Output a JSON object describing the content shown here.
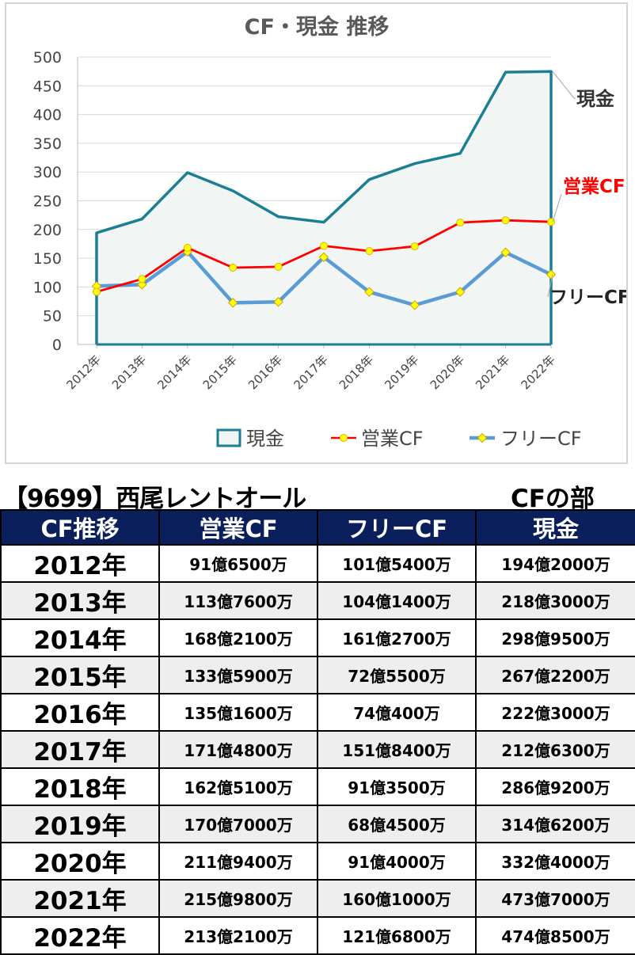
{
  "chart_data": {
    "type": "line",
    "title": "CF・現金 推移",
    "categories": [
      "2012年",
      "2013年",
      "2014年",
      "2015年",
      "2016年",
      "2017年",
      "2018年",
      "2019年",
      "2020年",
      "2021年",
      "2022年"
    ],
    "ylim": [
      0,
      500
    ],
    "yticks": [
      0,
      50,
      100,
      150,
      200,
      250,
      300,
      350,
      400,
      450,
      500
    ],
    "grid": true,
    "legend_position": "bottom",
    "series": [
      {
        "name": "現金",
        "style": "area",
        "color": "#1b7f94",
        "fill": "#f1f6f4",
        "values": [
          194.2,
          218.3,
          298.95,
          267.22,
          222.3,
          212.63,
          286.92,
          314.62,
          332.4,
          473.7,
          474.85
        ]
      },
      {
        "name": "営業CF",
        "style": "line",
        "color": "#ff0000",
        "marker": "circle",
        "marker_color": "#ffff00",
        "values": [
          91.65,
          113.76,
          168.21,
          133.59,
          135.16,
          171.48,
          162.51,
          170.7,
          211.94,
          215.98,
          213.21
        ]
      },
      {
        "name": "フリーCF",
        "style": "line",
        "color": "#5b9bd5",
        "marker": "diamond",
        "marker_color": "#ffff00",
        "values": [
          101.54,
          104.14,
          161.27,
          72.55,
          74.04,
          151.84,
          91.35,
          68.45,
          91.4,
          160.1,
          121.68
        ]
      }
    ],
    "annotations": [
      {
        "text": "現金",
        "series": 0,
        "color": "#333333"
      },
      {
        "text": "営業CF",
        "series": 1,
        "color": "#ff0000"
      },
      {
        "text": "フリーCF",
        "series": 2,
        "color": "#222222"
      }
    ]
  },
  "company_title": "【9699】西尾レントオール",
  "section_title": "CFの部",
  "table": {
    "headers": [
      "CF推移",
      "営業CF",
      "フリーCF",
      "現金"
    ],
    "rows": [
      [
        "2012年",
        "91億6500万",
        "101億5400万",
        "194億2000万"
      ],
      [
        "2013年",
        "113億7600万",
        "104億1400万",
        "218億3000万"
      ],
      [
        "2014年",
        "168億2100万",
        "161億2700万",
        "298億9500万"
      ],
      [
        "2015年",
        "133億5900万",
        "72億5500万",
        "267億2200万"
      ],
      [
        "2016年",
        "135億1600万",
        "74億400万",
        "222億3000万"
      ],
      [
        "2017年",
        "171億4800万",
        "151億8400万",
        "212億6300万"
      ],
      [
        "2018年",
        "162億5100万",
        "91億3500万",
        "286億9200万"
      ],
      [
        "2019年",
        "170億7000万",
        "68億4500万",
        "314億6200万"
      ],
      [
        "2020年",
        "211億9400万",
        "91億4000万",
        "332億4000万"
      ],
      [
        "2021年",
        "215億9800万",
        "160億1000万",
        "473億7000万"
      ],
      [
        "2022年",
        "213億2100万",
        "121億6800万",
        "474億8500万"
      ]
    ]
  }
}
